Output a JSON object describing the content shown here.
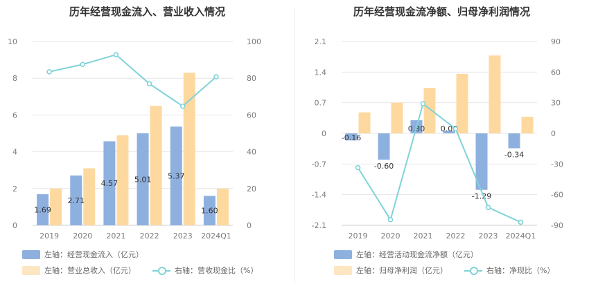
{
  "chart_data": [
    {
      "type": "bar",
      "title": "历年经营现金流入、营业收入情况",
      "categories": [
        "2019",
        "2020",
        "2021",
        "2022",
        "2023",
        "2024Q1"
      ],
      "left_axis": {
        "ylim": [
          0,
          10
        ],
        "ticks": [
          0,
          2,
          4,
          6,
          8,
          10
        ]
      },
      "right_axis": {
        "ylim": [
          0,
          100
        ],
        "ticks": [
          0,
          20,
          40,
          60,
          80,
          100
        ]
      },
      "series": [
        {
          "name": "左轴：经营现金流入（亿元）",
          "type": "bar",
          "axis": "left",
          "color": "#8eb0df",
          "values": [
            1.69,
            2.71,
            4.57,
            5.01,
            5.37,
            1.6
          ],
          "labels": [
            "1.69",
            "2.71",
            "4.57",
            "5.01",
            "5.37",
            "1.60"
          ]
        },
        {
          "name": "左轴：营业总收入（亿元）",
          "type": "bar",
          "axis": "left",
          "color": "#fdd9a0",
          "values": [
            2.0,
            3.1,
            4.9,
            6.5,
            8.3,
            2.0
          ]
        },
        {
          "name": "右轴：营收现金比（%）",
          "type": "line",
          "axis": "right",
          "color": "#7fd3d8",
          "values": [
            83.5,
            87.5,
            92.8,
            77.0,
            64.8,
            80.8
          ]
        }
      ],
      "grid": true,
      "legend_position": "bottom-left"
    },
    {
      "type": "bar",
      "title": "历年经营现金流净额、归母净利润情况",
      "categories": [
        "2019",
        "2020",
        "2021",
        "2022",
        "2023",
        "2024Q1"
      ],
      "left_axis": {
        "ylim": [
          -2.1,
          2.1
        ],
        "ticks": [
          -2.1,
          -1.4,
          -0.7,
          0,
          0.7,
          1.4,
          2.1
        ],
        "tick_labels": [
          "-2.1",
          "-1.4",
          "-0.7",
          "0",
          "0.7",
          "1.4",
          "2.1"
        ]
      },
      "right_axis": {
        "ylim": [
          -90,
          90
        ],
        "ticks": [
          -90,
          -60,
          -30,
          0,
          30,
          60,
          90
        ]
      },
      "series": [
        {
          "name": "左轴：经营活动现金流净额（亿元）",
          "type": "bar",
          "axis": "left",
          "color": "#8eb0df",
          "values": [
            -0.16,
            -0.6,
            0.3,
            0.06,
            -1.29,
            -0.34
          ],
          "labels": [
            "-0.16",
            "-0.60",
            "0.30",
            "0.06",
            "-1.29",
            "-0.34"
          ]
        },
        {
          "name": "左轴：归母净利润（亿元）",
          "type": "bar",
          "axis": "left",
          "color": "#fdd9a0",
          "values": [
            0.48,
            0.7,
            1.04,
            1.36,
            1.78,
            0.38
          ]
        },
        {
          "name": "右轴：净现比（%）",
          "type": "line",
          "axis": "right",
          "color": "#7fd3d8",
          "values": [
            -33.5,
            -84.5,
            29.0,
            4.4,
            -72.5,
            -87.0
          ]
        }
      ],
      "grid": true,
      "legend_position": "bottom-left"
    }
  ]
}
